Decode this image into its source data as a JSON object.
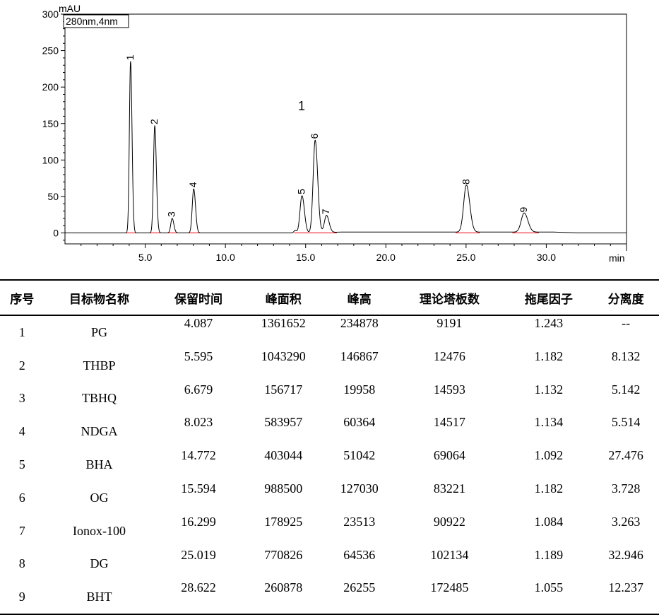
{
  "chart_data": {
    "type": "line",
    "ylabel": "mAU",
    "xlabel": "min",
    "detector_label": "280nm,4nm",
    "inset_label": "1",
    "xlim": [
      0,
      35
    ],
    "ylim": [
      -15,
      300
    ],
    "x_ticks": [
      "5.0",
      "10.0",
      "15.0",
      "20.0",
      "25.0",
      "30.0"
    ],
    "x_tick_values": [
      5,
      10,
      15,
      20,
      25,
      30
    ],
    "y_ticks": [
      "0",
      "50",
      "100",
      "150",
      "200",
      "250",
      "300"
    ],
    "y_tick_values": [
      0,
      50,
      100,
      150,
      200,
      250,
      300
    ],
    "grid": false,
    "peaks": [
      {
        "label": "1",
        "rt": 4.087,
        "height": 234.878
      },
      {
        "label": "2",
        "rt": 5.595,
        "height": 146.867
      },
      {
        "label": "3",
        "rt": 6.679,
        "height": 19.958
      },
      {
        "label": "4",
        "rt": 8.023,
        "height": 60.364
      },
      {
        "label": "5",
        "rt": 14.772,
        "height": 51.042
      },
      {
        "label": "6",
        "rt": 15.594,
        "height": 127.03
      },
      {
        "label": "7",
        "rt": 16.299,
        "height": 23.513
      },
      {
        "label": "8",
        "rt": 25.019,
        "height": 64.536
      },
      {
        "label": "9",
        "rt": 28.622,
        "height": 26.255
      }
    ]
  },
  "table": {
    "headers": [
      "序号",
      "目标物名称",
      "保留时间",
      "峰面积",
      "峰高",
      "理论塔板数",
      "拖尾因子",
      "分离度"
    ],
    "rows": [
      [
        "1",
        "PG",
        "4.087",
        "1361652",
        "234878",
        "9191",
        "1.243",
        "--"
      ],
      [
        "2",
        "THBP",
        "5.595",
        "1043290",
        "146867",
        "12476",
        "1.182",
        "8.132"
      ],
      [
        "3",
        "TBHQ",
        "6.679",
        "156717",
        "19958",
        "14593",
        "1.132",
        "5.142"
      ],
      [
        "4",
        "NDGA",
        "8.023",
        "583957",
        "60364",
        "14517",
        "1.134",
        "5.514"
      ],
      [
        "5",
        "BHA",
        "14.772",
        "403044",
        "51042",
        "69064",
        "1.092",
        "27.476"
      ],
      [
        "6",
        "OG",
        "15.594",
        "988500",
        "127030",
        "83221",
        "1.182",
        "3.728"
      ],
      [
        "7",
        "Ionox-100",
        "16.299",
        "178925",
        "23513",
        "90922",
        "1.084",
        "3.263"
      ],
      [
        "8",
        "DG",
        "25.019",
        "770826",
        "64536",
        "102134",
        "1.189",
        "32.946"
      ],
      [
        "9",
        "BHT",
        "28.622",
        "260878",
        "26255",
        "172485",
        "1.055",
        "12.237"
      ]
    ]
  }
}
